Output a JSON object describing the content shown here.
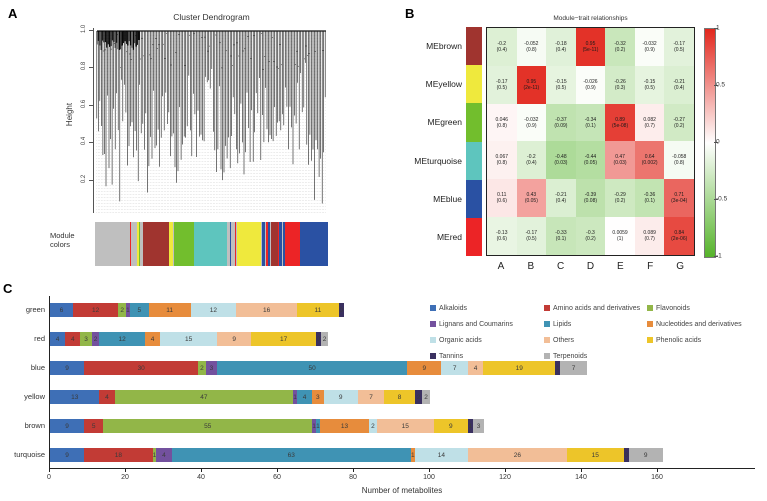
{
  "panel_labels": {
    "a": "A",
    "b": "B",
    "c": "C"
  },
  "chart_data": [
    {
      "panel": "A",
      "type": "dendrogram",
      "title": "Cluster Dendrogram",
      "ylabel": "Height",
      "yticks": [
        "1.0",
        "0.8",
        "0.6",
        "0.4",
        "0.2"
      ],
      "module_colors_label": "Module colors",
      "module_palette": {
        "gray": "#bfbfbf",
        "brown": "#a0342f",
        "yellow": "#efe93d",
        "green": "#72be2d",
        "turquoise": "#5ec5be",
        "blue": "#2a51a3",
        "red": "#ec2426"
      },
      "module_band": [
        {
          "c": "gray",
          "w": 14
        },
        {
          "c": "red",
          "w": 0.4
        },
        {
          "c": "gray",
          "w": 2.6
        },
        {
          "c": "yellow",
          "w": 0.7
        },
        {
          "c": "green",
          "w": 0.5
        },
        {
          "c": "gray",
          "w": 1.0
        },
        {
          "c": "brown",
          "w": 10.5
        },
        {
          "c": "yellow",
          "w": 1.6
        },
        {
          "c": "gray",
          "w": 0.6
        },
        {
          "c": "green",
          "w": 8.0
        },
        {
          "c": "turquoise",
          "w": 13.5
        },
        {
          "c": "gray",
          "w": 0.9
        },
        {
          "c": "blue",
          "w": 0.6
        },
        {
          "c": "gray",
          "w": 1.6
        },
        {
          "c": "red",
          "w": 0.4
        },
        {
          "c": "gray",
          "w": 0.5
        },
        {
          "c": "yellow",
          "w": 9.5
        },
        {
          "c": "gray",
          "w": 0.6
        },
        {
          "c": "blue",
          "w": 0.9
        },
        {
          "c": "gray",
          "w": 0.7
        },
        {
          "c": "red",
          "w": 0.6
        },
        {
          "c": "blue",
          "w": 0.8
        },
        {
          "c": "gray",
          "w": 0.6
        },
        {
          "c": "brown",
          "w": 2.6
        },
        {
          "c": "red",
          "w": 0.5
        },
        {
          "c": "blue",
          "w": 1.1
        },
        {
          "c": "gray",
          "w": 0.5
        },
        {
          "c": "blue",
          "w": 0.7
        },
        {
          "c": "red",
          "w": 6.3
        },
        {
          "c": "blue",
          "w": 11.2
        }
      ]
    },
    {
      "panel": "B",
      "type": "heatmap",
      "title": "Module−trait relationships",
      "columns": [
        "A",
        "B",
        "C",
        "D",
        "E",
        "F",
        "G"
      ],
      "pos_color": "#e2271d",
      "neg_color": "#55b32a",
      "colorbar_ticks": [
        "1",
        "0.5",
        "0",
        "-0.5",
        "-1"
      ],
      "rows": [
        {
          "name": "MEbrown",
          "color": "#a0342f",
          "v": [
            "-0.2",
            "-0.052",
            "-0.18",
            "0.95",
            "-0.32",
            "-0.032",
            "-0.17"
          ],
          "p": [
            "(0.4)",
            "(0.8)",
            "(0.4)",
            "(5e-11)",
            "(0.2)",
            "(0.9)",
            "(0.5)"
          ]
        },
        {
          "name": "MEyellow",
          "color": "#efe93d",
          "v": [
            "-0.17",
            "0.95",
            "-0.15",
            "-0.026",
            "-0.26",
            "-0.15",
            "-0.21"
          ],
          "p": [
            "(0.5)",
            "(2e-11)",
            "(0.5)",
            "(0.9)",
            "(0.3)",
            "(0.5)",
            "(0.4)"
          ]
        },
        {
          "name": "MEgreen",
          "color": "#72be2d",
          "v": [
            "0.046",
            "-0.032",
            "-0.37",
            "-0.34",
            "0.89",
            "0.082",
            "-0.27"
          ],
          "p": [
            "(0.8)",
            "(0.9)",
            "(0.09)",
            "(0.1)",
            "(5e-08)",
            "(0.7)",
            "(0.2)"
          ]
        },
        {
          "name": "MEturquoise",
          "color": "#5ec5be",
          "v": [
            "0.067",
            "-0.2",
            "-0.48",
            "-0.44",
            "0.47",
            "0.64",
            "-0.058"
          ],
          "p": [
            "(0.8)",
            "(0.4)",
            "(0.03)",
            "(0.05)",
            "(0.03)",
            "(0.002)",
            "(0.8)"
          ]
        },
        {
          "name": "MEblue",
          "color": "#2a51a3",
          "v": [
            "0.11",
            "0.43",
            "-0.21",
            "-0.39",
            "-0.29",
            "-0.36",
            "0.71"
          ],
          "p": [
            "(0.6)",
            "(0.05)",
            "(0.4)",
            "(0.08)",
            "(0.2)",
            "(0.1)",
            "(3e-04)"
          ]
        },
        {
          "name": "MEred",
          "color": "#ec2426",
          "v": [
            "-0.13",
            "-0.17",
            "-0.33",
            "-0.3",
            "0.0059",
            "0.089",
            "0.84"
          ],
          "p": [
            "(0.6)",
            "(0.5)",
            "(0.1)",
            "(0.2)",
            "(1)",
            "(0.7)",
            "(2e-06)"
          ]
        }
      ]
    },
    {
      "panel": "C",
      "type": "bar",
      "stacked": true,
      "orientation": "horizontal",
      "xlabel": "Number of metabolites",
      "xticks": [
        0,
        20,
        40,
        60,
        80,
        100,
        120,
        140,
        160
      ],
      "xlim": [
        0,
        160
      ],
      "series_colors": {
        "Alkaloids": "#3e6fb6",
        "Amino acids and derivatives": "#c23b35",
        "Flavonoids": "#92b648",
        "Lignans and Coumarins": "#73519e",
        "Lipids": "#3f93b4",
        "Nucleotides and derivatives": "#e78c3c",
        "Organic acids": "#bfe0e7",
        "Others": "#f2be97",
        "Phenolic acids": "#edc529",
        "Tannins": "#3a3060",
        "Terpenoids": "#b3b3b3"
      },
      "legend_columns": [
        [
          "Alkaloids",
          "Lignans and Coumarins",
          "Organic acids",
          "Tannins"
        ],
        [
          "Amino acids and derivatives",
          "Lipids",
          "Others",
          "Terpenoids"
        ],
        [
          "Flavonoids",
          "Nucleotides and derivatives",
          "Phenolic acids"
        ]
      ],
      "categories": [
        {
          "name": "green",
          "segments": [
            {
              "c": "Alkaloids",
              "v": 6,
              "l": "6"
            },
            {
              "c": "Amino acids and derivatives",
              "v": 12,
              "l": "12"
            },
            {
              "c": "Flavonoids",
              "v": 2,
              "l": "2"
            },
            {
              "c": "Lignans and Coumarins",
              "v": 1,
              "l": "1"
            },
            {
              "c": "Lipids",
              "v": 5,
              "l": "5"
            },
            {
              "c": "Nucleotides and derivatives",
              "v": 11,
              "l": "11"
            },
            {
              "c": "Organic acids",
              "v": 12,
              "l": "12"
            },
            {
              "c": "Others",
              "v": 16,
              "l": "16"
            },
            {
              "c": "Phenolic acids",
              "v": 11,
              "l": "11"
            },
            {
              "c": "Tannins",
              "v": 1.3,
              "l": "0"
            }
          ]
        },
        {
          "name": "red",
          "segments": [
            {
              "c": "Alkaloids",
              "v": 4,
              "l": "4"
            },
            {
              "c": "Amino acids and derivatives",
              "v": 4,
              "l": "4"
            },
            {
              "c": "Flavonoids",
              "v": 3,
              "l": "3"
            },
            {
              "c": "Lignans and Coumarins",
              "v": 2,
              "l": "2"
            },
            {
              "c": "Lipids",
              "v": 12,
              "l": "12"
            },
            {
              "c": "Nucleotides and derivatives",
              "v": 4,
              "l": "4"
            },
            {
              "c": "Organic acids",
              "v": 15,
              "l": "15"
            },
            {
              "c": "Others",
              "v": 9,
              "l": "9"
            },
            {
              "c": "Phenolic acids",
              "v": 17,
              "l": "17"
            },
            {
              "c": "Tannins",
              "v": 1.3,
              "l": "0"
            },
            {
              "c": "Terpenoids",
              "v": 2,
              "l": "2"
            }
          ]
        },
        {
          "name": "blue",
          "segments": [
            {
              "c": "Alkaloids",
              "v": 9,
              "l": "9"
            },
            {
              "c": "Amino acids and derivatives",
              "v": 30,
              "l": "30"
            },
            {
              "c": "Flavonoids",
              "v": 2,
              "l": "2"
            },
            {
              "c": "Lignans and Coumarins",
              "v": 3,
              "l": "3"
            },
            {
              "c": "Lipids",
              "v": 50,
              "l": "50"
            },
            {
              "c": "Nucleotides and derivatives",
              "v": 9,
              "l": "9"
            },
            {
              "c": "Organic acids",
              "v": 7,
              "l": "7"
            },
            {
              "c": "Others",
              "v": 4,
              "l": "4"
            },
            {
              "c": "Phenolic acids",
              "v": 19,
              "l": "19"
            },
            {
              "c": "Tannins",
              "v": 1.3,
              "l": "1"
            },
            {
              "c": "Terpenoids",
              "v": 7,
              "l": "7"
            }
          ]
        },
        {
          "name": "yellow",
          "segments": [
            {
              "c": "Alkaloids",
              "v": 13,
              "l": "13"
            },
            {
              "c": "Amino acids and derivatives",
              "v": 4,
              "l": "4"
            },
            {
              "c": "Flavonoids",
              "v": 47,
              "l": "47"
            },
            {
              "c": "Lignans and Coumarins",
              "v": 1,
              "l": "1"
            },
            {
              "c": "Lipids",
              "v": 4,
              "l": "4"
            },
            {
              "c": "Nucleotides and derivatives",
              "v": 3,
              "l": "3"
            },
            {
              "c": "Organic acids",
              "v": 9,
              "l": "9"
            },
            {
              "c": "Others",
              "v": 7,
              "l": "7"
            },
            {
              "c": "Phenolic acids",
              "v": 8,
              "l": "8"
            },
            {
              "c": "Tannins",
              "v": 2,
              "l": "2"
            },
            {
              "c": "Terpenoids",
              "v": 2,
              "l": "2"
            }
          ]
        },
        {
          "name": "brown",
          "segments": [
            {
              "c": "Alkaloids",
              "v": 9,
              "l": "9"
            },
            {
              "c": "Amino acids and derivatives",
              "v": 5,
              "l": "5"
            },
            {
              "c": "Flavonoids",
              "v": 55,
              "l": "55"
            },
            {
              "c": "Lignans and Coumarins",
              "v": 1,
              "l": "1"
            },
            {
              "c": "Lipids",
              "v": 1,
              "l": "1"
            },
            {
              "c": "Nucleotides and derivatives",
              "v": 13,
              "l": "13"
            },
            {
              "c": "Organic acids",
              "v": 2,
              "l": "2"
            },
            {
              "c": "Others",
              "v": 15,
              "l": "15"
            },
            {
              "c": "Phenolic acids",
              "v": 9,
              "l": "9"
            },
            {
              "c": "Tannins",
              "v": 1.3,
              "l": "1"
            },
            {
              "c": "Terpenoids",
              "v": 3,
              "l": "3"
            }
          ]
        },
        {
          "name": "turquoise",
          "segments": [
            {
              "c": "Alkaloids",
              "v": 9,
              "l": "9"
            },
            {
              "c": "Amino acids and derivatives",
              "v": 18,
              "l": "18"
            },
            {
              "c": "Flavonoids",
              "v": 1,
              "l": "1"
            },
            {
              "c": "Lignans and Coumarins",
              "v": 4,
              "l": "4"
            },
            {
              "c": "Lipids",
              "v": 63,
              "l": "63"
            },
            {
              "c": "Nucleotides and derivatives",
              "v": 1,
              "l": "1"
            },
            {
              "c": "Organic acids",
              "v": 14,
              "l": "14"
            },
            {
              "c": "Others",
              "v": 26,
              "l": "26"
            },
            {
              "c": "Phenolic acids",
              "v": 15,
              "l": "15"
            },
            {
              "c": "Tannins",
              "v": 1.3,
              "l": "0"
            },
            {
              "c": "Terpenoids",
              "v": 9,
              "l": "9"
            }
          ]
        }
      ]
    }
  ]
}
